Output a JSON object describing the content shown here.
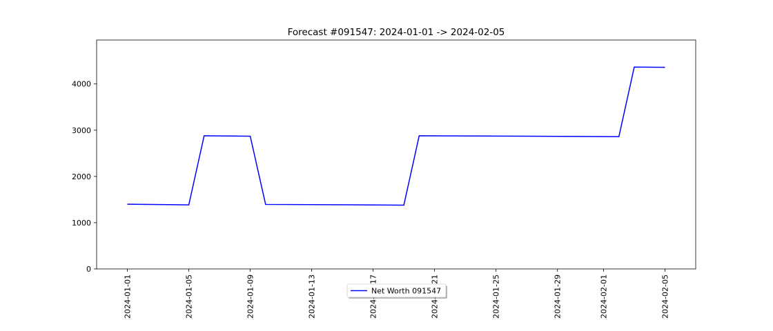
{
  "chart_data": {
    "type": "line",
    "title": "Forecast #091547: 2024-01-01 -> 2024-02-05",
    "xlabel": "",
    "ylabel": "",
    "x_start": "2024-01-01",
    "x_end": "2024-02-05",
    "xlim": [
      "2023-12-30",
      "2024-02-07"
    ],
    "ylim": [
      0,
      4950
    ],
    "xticks": [
      "2024-01-01",
      "2024-01-05",
      "2024-01-09",
      "2024-01-13",
      "2024-01-17",
      "2024-01-21",
      "2024-01-25",
      "2024-01-29",
      "2024-02-01",
      "2024-02-05"
    ],
    "yticks": [
      0,
      1000,
      2000,
      3000,
      4000
    ],
    "grid": false,
    "legend_position": "lower center",
    "series": [
      {
        "name": "Net Worth 091547",
        "color": "#0000ff",
        "points": [
          {
            "x": "2024-01-01",
            "y": 1400
          },
          {
            "x": "2024-01-05",
            "y": 1385
          },
          {
            "x": "2024-01-06",
            "y": 2880
          },
          {
            "x": "2024-01-09",
            "y": 2870
          },
          {
            "x": "2024-01-10",
            "y": 1395
          },
          {
            "x": "2024-01-19",
            "y": 1380
          },
          {
            "x": "2024-01-20",
            "y": 2880
          },
          {
            "x": "2024-02-02",
            "y": 2860
          },
          {
            "x": "2024-02-03",
            "y": 4365
          },
          {
            "x": "2024-02-05",
            "y": 4360
          }
        ]
      }
    ]
  }
}
